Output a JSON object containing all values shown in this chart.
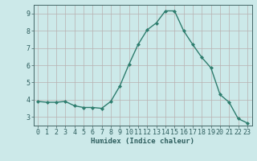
{
  "x": [
    0,
    1,
    2,
    3,
    4,
    5,
    6,
    7,
    8,
    9,
    10,
    11,
    12,
    13,
    14,
    15,
    16,
    17,
    18,
    19,
    20,
    21,
    22,
    23
  ],
  "y": [
    3.9,
    3.85,
    3.85,
    3.9,
    3.65,
    3.55,
    3.55,
    3.5,
    3.9,
    4.8,
    6.05,
    7.2,
    8.05,
    8.45,
    9.15,
    9.15,
    8.0,
    7.2,
    6.45,
    5.85,
    4.3,
    3.85,
    2.9,
    2.65
  ],
  "line_color": "#2e7d6e",
  "marker": "D",
  "marker_size": 2.0,
  "bg_color": "#cce9e9",
  "grid_color_major": "#b8b0b0",
  "grid_color_minor": "#d4cccc",
  "xlabel": "Humidex (Indice chaleur)",
  "xlim": [
    -0.5,
    23.5
  ],
  "ylim": [
    2.5,
    9.5
  ],
  "yticks": [
    3,
    4,
    5,
    6,
    7,
    8,
    9
  ],
  "xticks": [
    0,
    1,
    2,
    3,
    4,
    5,
    6,
    7,
    8,
    9,
    10,
    11,
    12,
    13,
    14,
    15,
    16,
    17,
    18,
    19,
    20,
    21,
    22,
    23
  ],
  "xlabel_fontsize": 6.5,
  "tick_fontsize": 6.0,
  "linewidth": 1.0,
  "spine_color": "#446666"
}
